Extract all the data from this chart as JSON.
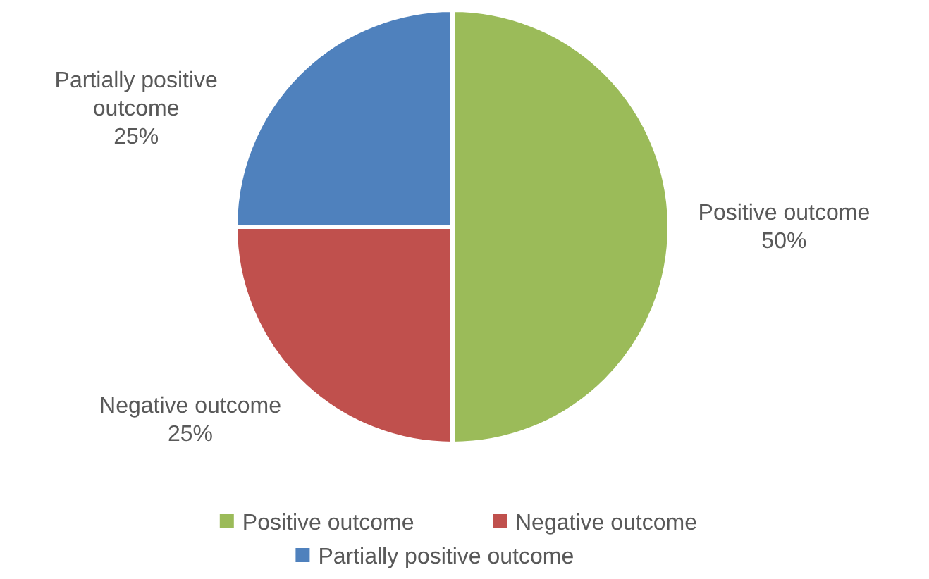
{
  "chart_data": {
    "type": "pie",
    "categories": [
      "Positive outcome",
      "Negative outcome",
      "Partially positive outcome"
    ],
    "values": [
      50,
      25,
      25
    ],
    "value_labels": [
      "50%",
      "25%",
      "25%"
    ],
    "colors": [
      "#9bbb59",
      "#c0504d",
      "#4f81bd"
    ],
    "data_labels": true,
    "legend": "bottom"
  }
}
